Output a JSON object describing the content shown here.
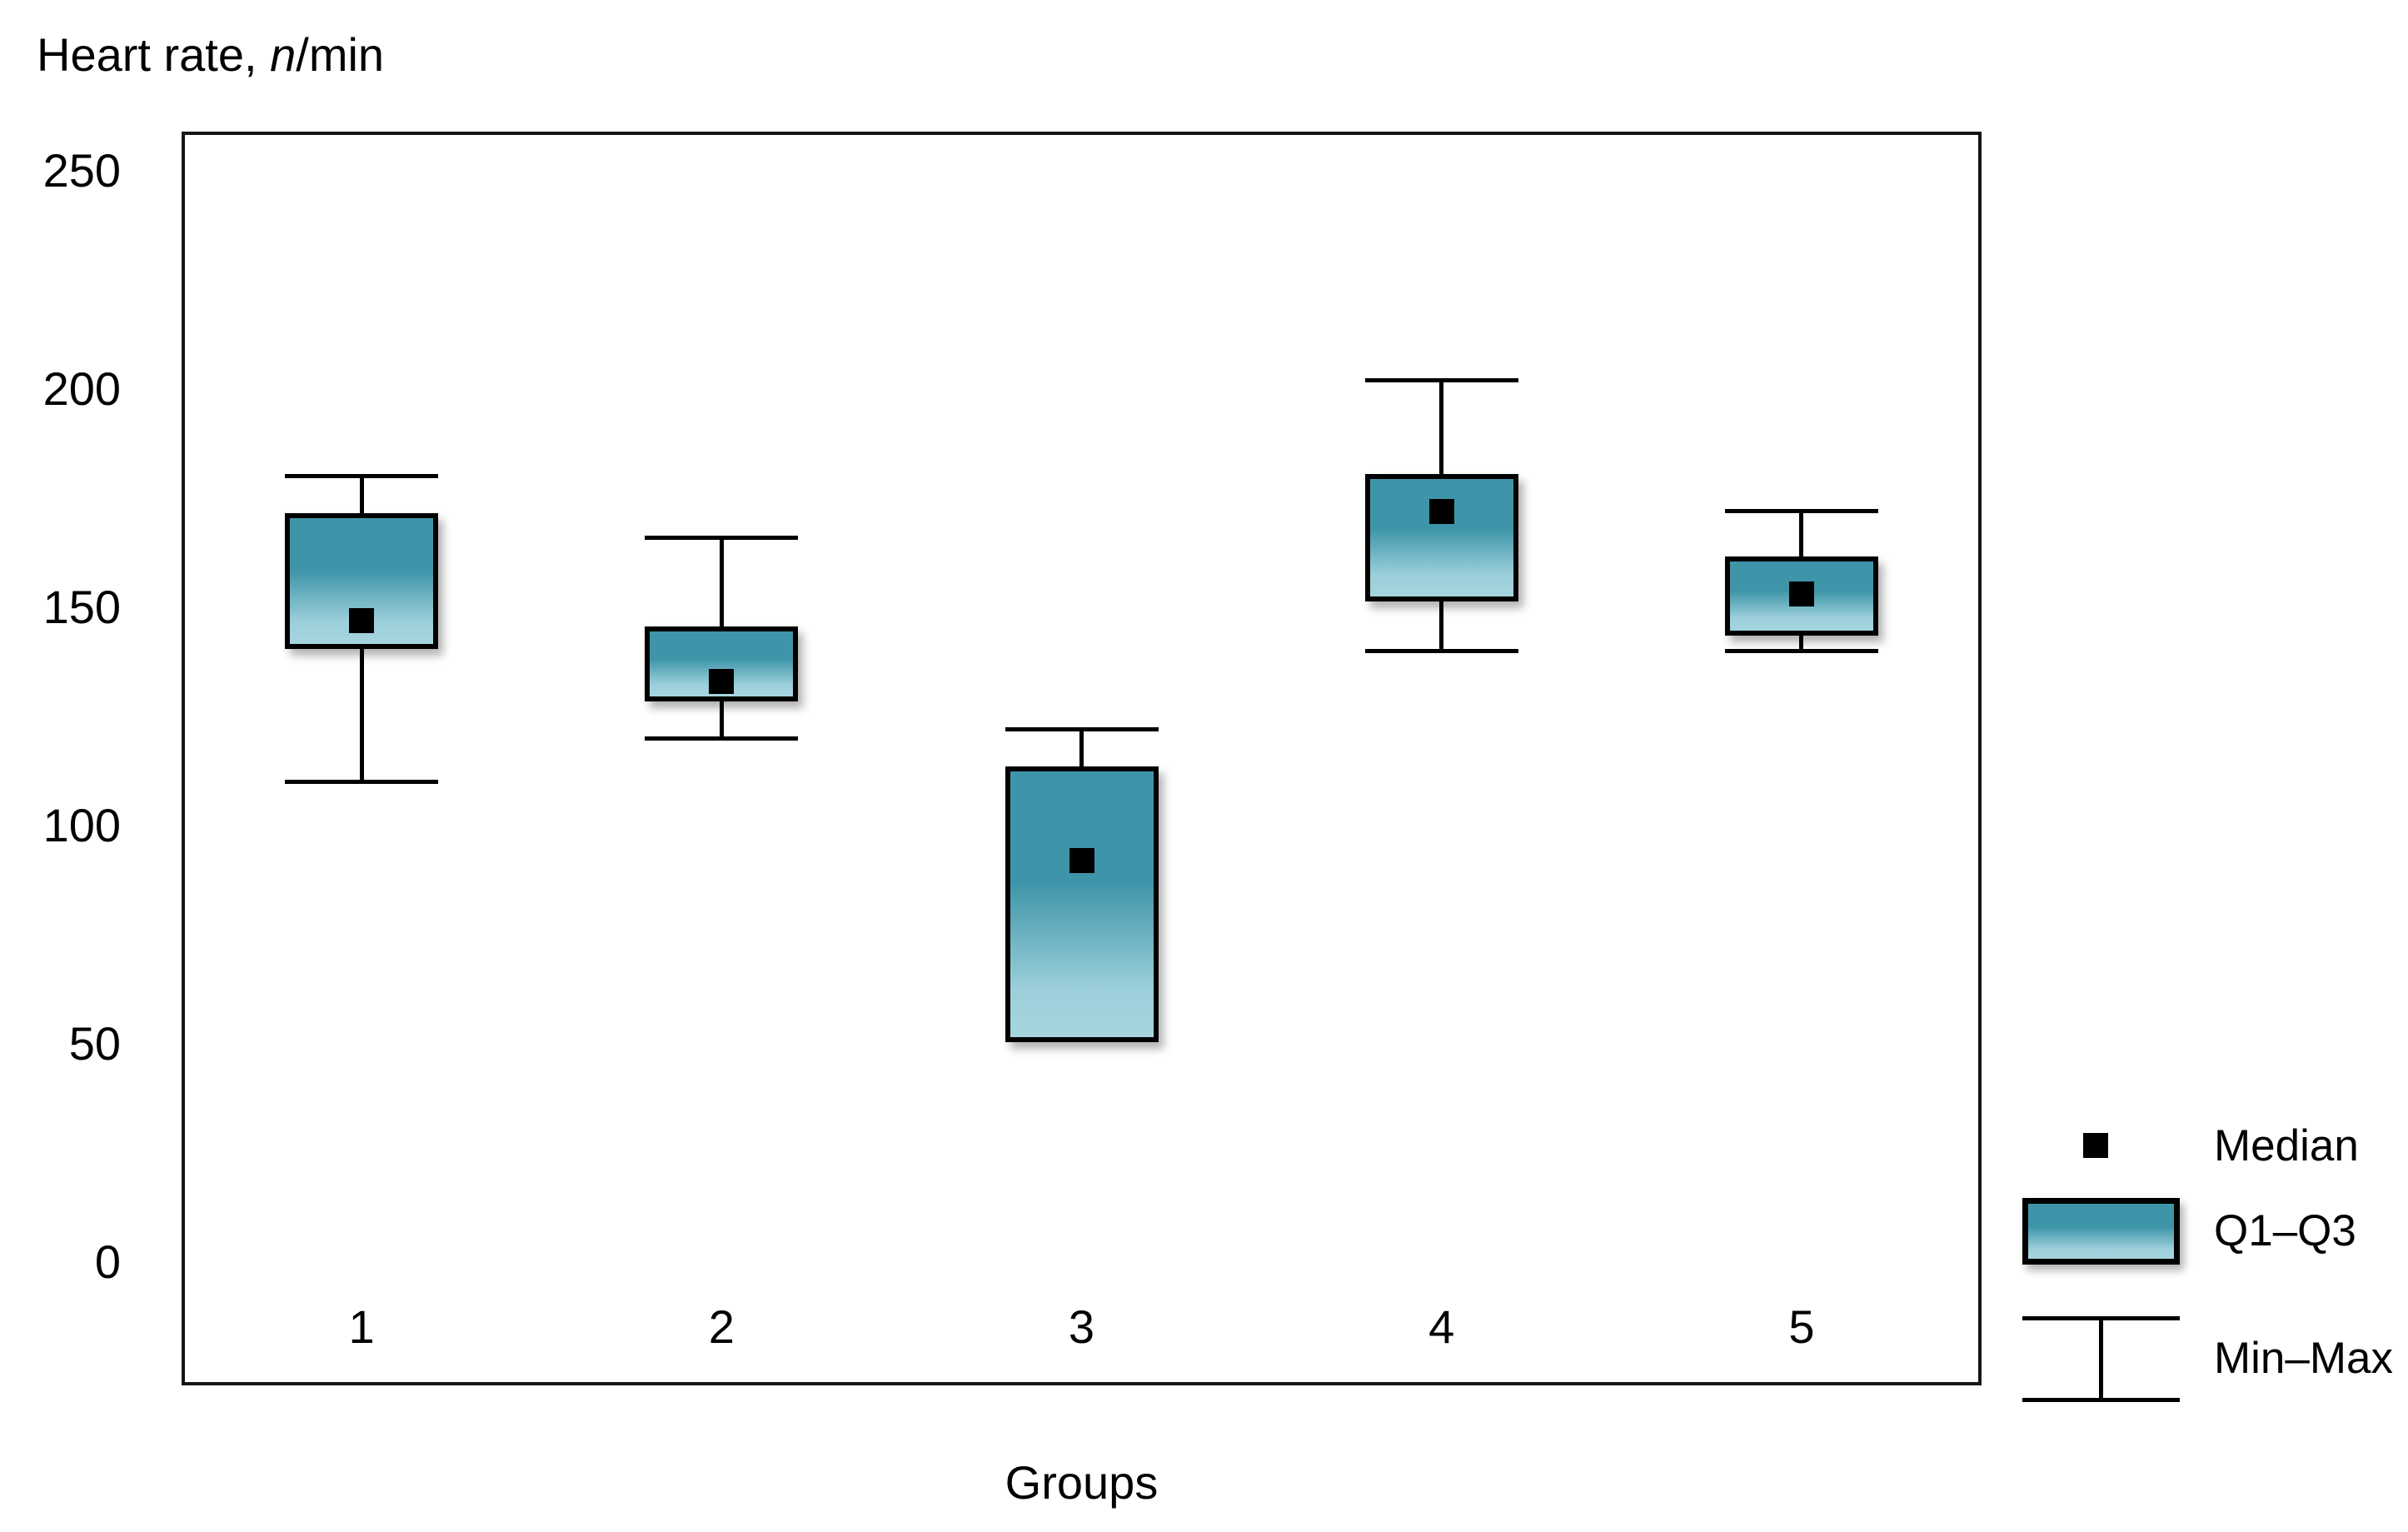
{
  "title": {
    "prefix": "Heart rate, ",
    "italic": "n",
    "suffix": "/min"
  },
  "y_axis": {
    "ticks": [
      250,
      200,
      150,
      100,
      50,
      0
    ],
    "tick_labels": [
      "250",
      "200",
      "150",
      "100",
      "50",
      "0"
    ]
  },
  "x_axis": {
    "label": "Groups",
    "tick_labels": [
      "1",
      "2",
      "3",
      "4",
      "5"
    ]
  },
  "legend": {
    "median_label": "Median",
    "box_label": "Q1–Q3",
    "whisker_label": "Min–Max"
  },
  "colors": {
    "box_gradient_top": "#3e95a9",
    "box_gradient_bottom": "#a6d5df",
    "line": "#000000",
    "median_marker": "#000000",
    "plot_border": "#161616"
  },
  "chart_data": {
    "type": "box",
    "title": "Heart rate, n/min",
    "ylabel": "Heart rate, n/min",
    "xlabel": "Groups",
    "ylim": [
      0,
      250
    ],
    "y_tick_step": 50,
    "grid": false,
    "legend_position": "bottom-right-outside",
    "categories": [
      "1",
      "2",
      "3",
      "4",
      "5"
    ],
    "series": [
      {
        "group": "1",
        "min": 110,
        "q1": 141,
        "median": 147,
        "q3": 171,
        "max": 180
      },
      {
        "group": "2",
        "min": 120,
        "q1": 129,
        "median": 133,
        "q3": 145,
        "max": 166
      },
      {
        "group": "3",
        "min": 51,
        "q1": 51,
        "median": 92,
        "q3": 113,
        "max": 122
      },
      {
        "group": "4",
        "min": 140,
        "q1": 152,
        "median": 172,
        "q3": 180,
        "max": 202
      },
      {
        "group": "5",
        "min": 140,
        "q1": 144,
        "median": 153,
        "q3": 161,
        "max": 172
      }
    ]
  }
}
